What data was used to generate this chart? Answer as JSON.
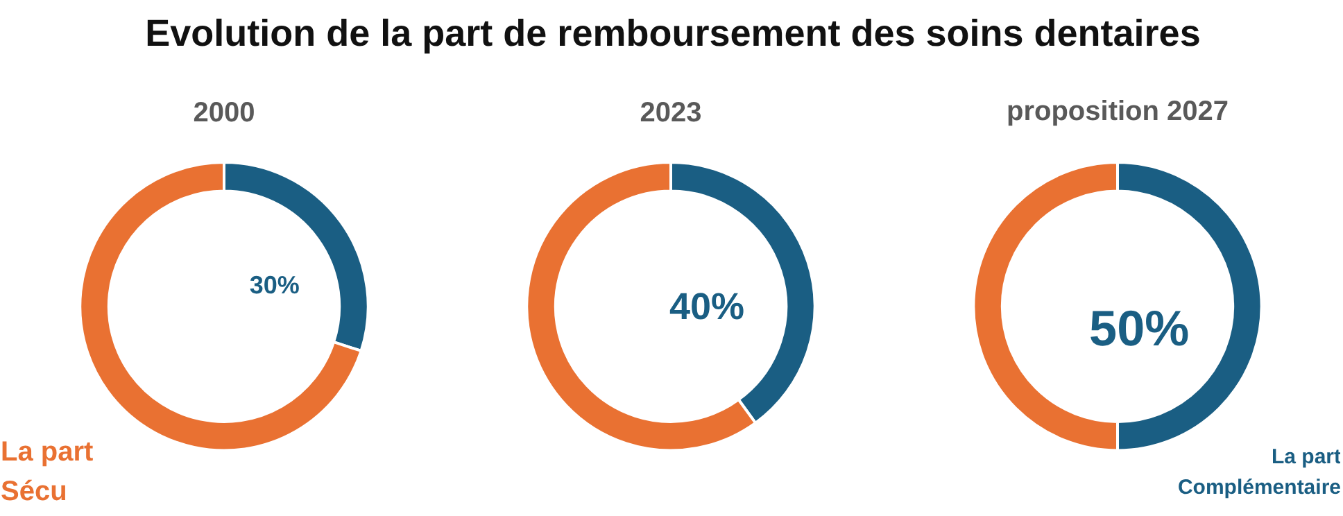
{
  "chart_data": [
    {
      "type": "donut",
      "title": "Evolution de la part de remboursement des soins dentaires",
      "subtitle": "2000",
      "categories": [
        null,
        "La part Sécu"
      ],
      "values": [
        30,
        70
      ],
      "colors": [
        "#1a5e83",
        "#e97132"
      ],
      "value_labels": [
        "30%",
        null
      ]
    },
    {
      "type": "donut",
      "subtitle": "2023",
      "categories": [
        null,
        null
      ],
      "values": [
        40,
        60
      ],
      "colors": [
        "#1a5e83",
        "#e97132"
      ],
      "value_labels": [
        "40%",
        null
      ]
    },
    {
      "type": "donut",
      "subtitle": "proposition 2027",
      "categories": [
        "La part Complémentaire",
        null
      ],
      "values": [
        50,
        50
      ],
      "colors": [
        "#1a5e83",
        "#e97132"
      ],
      "value_labels": [
        "50%",
        null
      ]
    }
  ]
}
